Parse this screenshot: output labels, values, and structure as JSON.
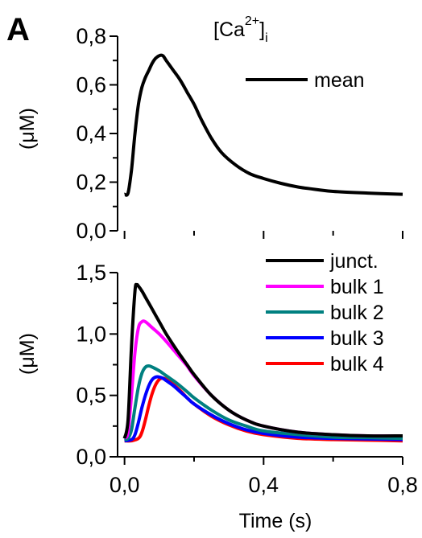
{
  "panel_label": "A",
  "chart_data": [
    {
      "type": "line",
      "title": {
        "base": "[Ca",
        "sup": "2+",
        "close": "]",
        "sub": "i"
      },
      "ylabel": "(μM)",
      "xlabel": "",
      "xlim": [
        -0.02,
        0.8
      ],
      "ylim": [
        0.0,
        0.8
      ],
      "yticks": [
        "0,0",
        "0,2",
        "0,4",
        "0,6",
        "0,8"
      ],
      "ytick_values": [
        0.0,
        0.2,
        0.4,
        0.6,
        0.8
      ],
      "xtick_values": [
        0.0,
        0.4,
        0.8
      ],
      "xtick_labels_visible": false,
      "legend_position": "top-right",
      "series": [
        {
          "name": "mean",
          "color": "#000000",
          "x": [
            0.0,
            0.01,
            0.02,
            0.03,
            0.04,
            0.05,
            0.06,
            0.07,
            0.08,
            0.09,
            0.1,
            0.11,
            0.12,
            0.14,
            0.16,
            0.18,
            0.2,
            0.22,
            0.25,
            0.28,
            0.32,
            0.36,
            0.4,
            0.45,
            0.5,
            0.55,
            0.6,
            0.7,
            0.8
          ],
          "y": [
            0.15,
            0.155,
            0.25,
            0.4,
            0.52,
            0.59,
            0.63,
            0.66,
            0.69,
            0.71,
            0.72,
            0.72,
            0.7,
            0.66,
            0.62,
            0.57,
            0.52,
            0.46,
            0.38,
            0.32,
            0.27,
            0.235,
            0.215,
            0.195,
            0.18,
            0.17,
            0.162,
            0.155,
            0.15
          ]
        }
      ]
    },
    {
      "type": "line",
      "xlabel": "Time (s)",
      "ylabel": "(μM)",
      "xlim": [
        -0.02,
        0.8
      ],
      "ylim": [
        0.0,
        1.5
      ],
      "yticks": [
        "0,0",
        "0,5",
        "1,0",
        "1,5"
      ],
      "ytick_values": [
        0.0,
        0.5,
        1.0,
        1.5
      ],
      "xticks": [
        "0,0",
        "0,4",
        "0,8"
      ],
      "xtick_values": [
        0.0,
        0.4,
        0.8
      ],
      "legend_position": "top-right",
      "series": [
        {
          "name": "junct.",
          "color": "#000000",
          "x": [
            0.0,
            0.01,
            0.02,
            0.03,
            0.035,
            0.04,
            0.05,
            0.06,
            0.08,
            0.1,
            0.12,
            0.15,
            0.18,
            0.2,
            0.25,
            0.3,
            0.35,
            0.4,
            0.5,
            0.6,
            0.7,
            0.8
          ],
          "y": [
            0.15,
            0.3,
            0.9,
            1.35,
            1.4,
            1.39,
            1.35,
            1.3,
            1.2,
            1.1,
            1.0,
            0.87,
            0.75,
            0.67,
            0.5,
            0.38,
            0.3,
            0.25,
            0.2,
            0.18,
            0.17,
            0.17
          ]
        },
        {
          "name": "bulk 1",
          "color": "#ff00ff",
          "x": [
            0.0,
            0.01,
            0.02,
            0.03,
            0.04,
            0.05,
            0.06,
            0.08,
            0.1,
            0.12,
            0.15,
            0.18,
            0.2,
            0.25,
            0.3,
            0.35,
            0.4,
            0.5,
            0.6,
            0.7,
            0.8
          ],
          "y": [
            0.15,
            0.2,
            0.5,
            0.85,
            1.05,
            1.1,
            1.1,
            1.05,
            1.0,
            0.94,
            0.84,
            0.74,
            0.66,
            0.5,
            0.38,
            0.3,
            0.25,
            0.2,
            0.18,
            0.17,
            0.17
          ]
        },
        {
          "name": "bulk 2",
          "color": "#008080",
          "x": [
            0.0,
            0.01,
            0.02,
            0.03,
            0.04,
            0.05,
            0.06,
            0.07,
            0.08,
            0.1,
            0.12,
            0.15,
            0.18,
            0.2,
            0.25,
            0.3,
            0.35,
            0.4,
            0.5,
            0.6,
            0.7,
            0.8
          ],
          "y": [
            0.14,
            0.15,
            0.22,
            0.4,
            0.57,
            0.68,
            0.73,
            0.74,
            0.73,
            0.7,
            0.66,
            0.6,
            0.53,
            0.48,
            0.38,
            0.3,
            0.25,
            0.21,
            0.18,
            0.16,
            0.155,
            0.15
          ]
        },
        {
          "name": "bulk 3",
          "color": "#0000ff",
          "x": [
            0.0,
            0.02,
            0.03,
            0.04,
            0.05,
            0.06,
            0.07,
            0.08,
            0.09,
            0.1,
            0.11,
            0.12,
            0.14,
            0.16,
            0.18,
            0.2,
            0.25,
            0.3,
            0.35,
            0.4,
            0.5,
            0.6,
            0.7,
            0.8
          ],
          "y": [
            0.13,
            0.14,
            0.18,
            0.28,
            0.4,
            0.5,
            0.58,
            0.63,
            0.65,
            0.65,
            0.64,
            0.62,
            0.58,
            0.53,
            0.48,
            0.43,
            0.34,
            0.27,
            0.22,
            0.19,
            0.16,
            0.15,
            0.145,
            0.14
          ]
        },
        {
          "name": "bulk 4",
          "color": "#ff0000",
          "x": [
            0.0,
            0.02,
            0.04,
            0.05,
            0.06,
            0.07,
            0.08,
            0.09,
            0.1,
            0.11,
            0.12,
            0.14,
            0.16,
            0.18,
            0.2,
            0.25,
            0.3,
            0.35,
            0.4,
            0.5,
            0.6,
            0.7,
            0.8
          ],
          "y": [
            0.13,
            0.13,
            0.15,
            0.2,
            0.3,
            0.42,
            0.52,
            0.59,
            0.63,
            0.64,
            0.63,
            0.59,
            0.54,
            0.48,
            0.43,
            0.33,
            0.26,
            0.21,
            0.18,
            0.15,
            0.14,
            0.135,
            0.13
          ]
        }
      ]
    }
  ]
}
